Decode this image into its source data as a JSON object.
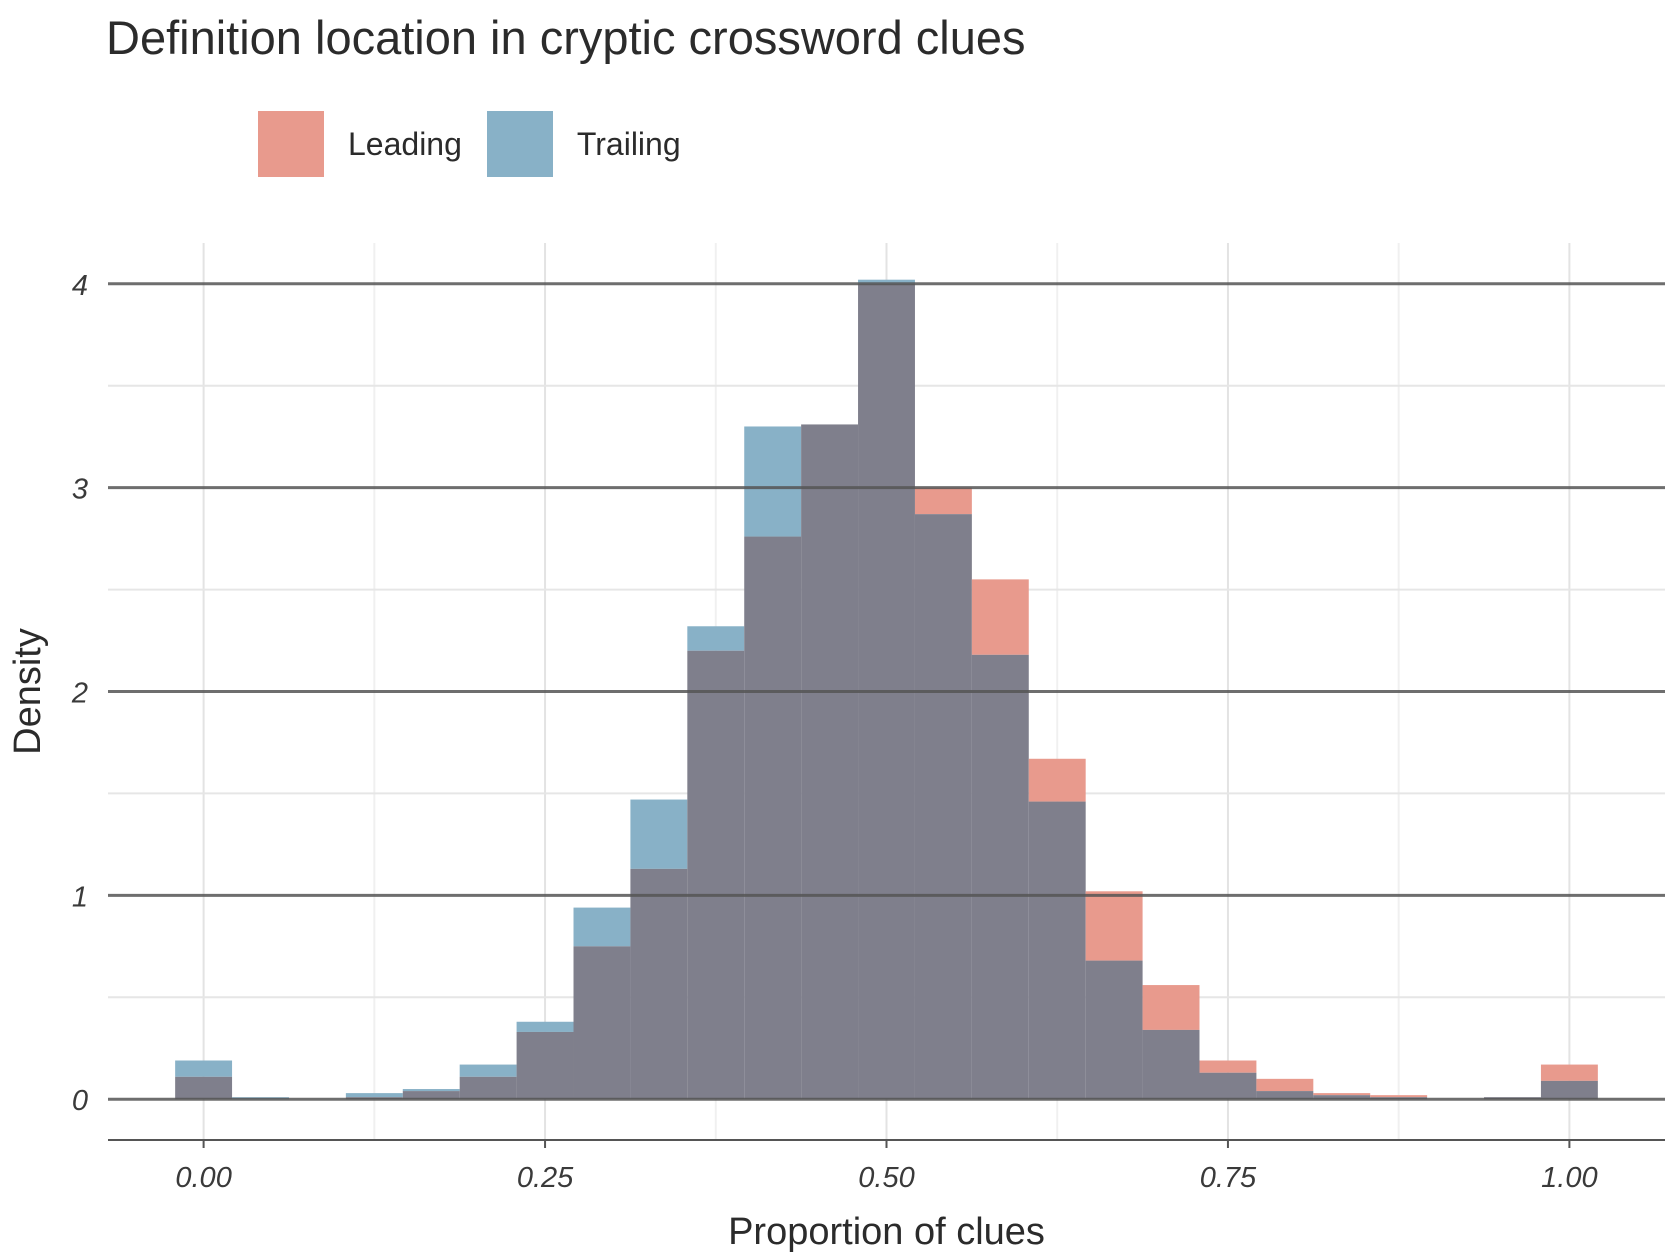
{
  "chart_data": {
    "type": "bar",
    "title": "Definition location in cryptic crossword clues",
    "xlabel": "Proportion of clues",
    "ylabel": "Density",
    "xlim": [
      -0.07,
      1.07
    ],
    "ylim": [
      -0.2,
      4.2
    ],
    "x_ticks": [
      "0.00",
      "0.25",
      "0.50",
      "0.75",
      "1.00"
    ],
    "x_tick_values": [
      0,
      0.25,
      0.5,
      0.75,
      1.0
    ],
    "y_ticks": [
      "0",
      "1",
      "2",
      "3",
      "4"
    ],
    "y_tick_values": [
      0,
      1,
      2,
      3,
      4
    ],
    "grid": true,
    "legend_position": "top-left",
    "overlap_color": "#7f7f8c",
    "bin_width": 0.04167,
    "bin_centers": [
      0.0,
      0.04167,
      0.08333,
      0.125,
      0.16667,
      0.20833,
      0.25,
      0.29167,
      0.33333,
      0.375,
      0.41667,
      0.45833,
      0.5,
      0.54167,
      0.58333,
      0.625,
      0.66667,
      0.70833,
      0.75,
      0.79167,
      0.83333,
      0.875,
      0.91667,
      0.95833,
      1.0
    ],
    "series": [
      {
        "name": "Leading",
        "color": "#e89a8d",
        "values": [
          0.11,
          0.0,
          0.0,
          0.01,
          0.04,
          0.11,
          0.33,
          0.75,
          1.13,
          2.2,
          2.76,
          3.31,
          4.0,
          3.0,
          2.55,
          1.67,
          1.02,
          0.56,
          0.19,
          0.1,
          0.03,
          0.02,
          0.0,
          0.01,
          0.17
        ]
      },
      {
        "name": "Trailing",
        "color": "#88b1c7",
        "values": [
          0.19,
          0.01,
          0.0,
          0.03,
          0.05,
          0.17,
          0.38,
          0.94,
          1.47,
          2.32,
          3.3,
          3.31,
          4.02,
          2.87,
          2.18,
          1.46,
          0.68,
          0.34,
          0.13,
          0.04,
          0.02,
          0.01,
          0.0,
          0.01,
          0.09
        ]
      }
    ]
  }
}
